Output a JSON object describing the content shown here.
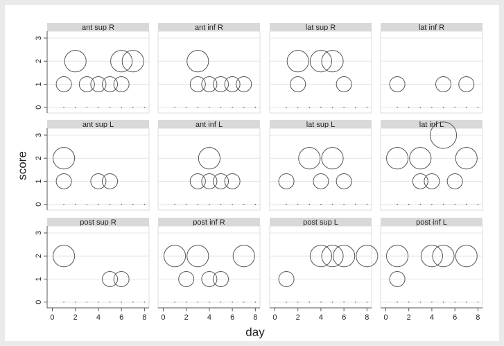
{
  "chart_data": {
    "type": "scatter",
    "x_label": "day",
    "y_label": "score",
    "xlim": [
      -0.45,
      8.4
    ],
    "ylim": [
      -0.25,
      3.3
    ],
    "xticks": [
      0,
      2,
      4,
      6,
      8
    ],
    "yticks": [
      0,
      1,
      2,
      3
    ],
    "grid": true,
    "color": "#555555",
    "panels": [
      {
        "title": "ant sup R",
        "x": [
          2,
          6,
          7,
          1,
          3,
          4,
          5,
          6,
          1,
          2,
          3,
          4,
          5,
          6,
          7,
          8
        ],
        "y": [
          2,
          2,
          2,
          1,
          1,
          1,
          1,
          1,
          0,
          0,
          0,
          0,
          0,
          0,
          0,
          0
        ]
      },
      {
        "title": "ant inf R",
        "x": [
          3,
          3,
          4,
          5,
          6,
          7,
          1,
          2,
          3,
          4,
          5,
          6,
          7,
          8
        ],
        "y": [
          2,
          1,
          1,
          1,
          1,
          1,
          0,
          0,
          0,
          0,
          0,
          0,
          0,
          0
        ]
      },
      {
        "title": "lat sup R",
        "x": [
          2,
          4,
          5,
          2,
          6,
          1,
          2,
          3,
          4,
          5,
          6,
          7,
          8
        ],
        "y": [
          2,
          2,
          2,
          1,
          1,
          0,
          0,
          0,
          0,
          0,
          0,
          0,
          0
        ]
      },
      {
        "title": "lat inf R",
        "x": [
          1,
          5,
          7,
          1,
          2,
          3,
          4,
          5,
          6,
          7,
          8
        ],
        "y": [
          1,
          1,
          1,
          0,
          0,
          0,
          0,
          0,
          0,
          0,
          0
        ]
      },
      {
        "title": "ant sup L",
        "x": [
          1,
          1,
          4,
          5,
          1,
          2,
          3,
          4,
          5,
          6,
          7,
          8
        ],
        "y": [
          2,
          1,
          1,
          1,
          0,
          0,
          0,
          0,
          0,
          0,
          0,
          0
        ]
      },
      {
        "title": "ant inf L",
        "x": [
          4,
          3,
          4,
          5,
          6,
          1,
          2,
          3,
          4,
          5,
          6,
          7,
          8
        ],
        "y": [
          2,
          1,
          1,
          1,
          1,
          0,
          0,
          0,
          0,
          0,
          0,
          0,
          0
        ]
      },
      {
        "title": "lat sup L",
        "x": [
          3,
          5,
          1,
          4,
          6,
          1,
          2,
          3,
          4,
          5,
          6,
          7,
          8
        ],
        "y": [
          2,
          2,
          1,
          1,
          1,
          0,
          0,
          0,
          0,
          0,
          0,
          0,
          0
        ]
      },
      {
        "title": "lat inf L",
        "x": [
          5,
          1,
          3,
          7,
          3,
          4,
          6,
          1,
          2,
          3,
          4,
          5,
          6,
          7,
          8
        ],
        "y": [
          3,
          2,
          2,
          2,
          1,
          1,
          1,
          0,
          0,
          0,
          0,
          0,
          0,
          0,
          0
        ]
      },
      {
        "title": "post sup R",
        "x": [
          1,
          5,
          6,
          1,
          2,
          3,
          4,
          5,
          6,
          7,
          8
        ],
        "y": [
          2,
          1,
          1,
          0,
          0,
          0,
          0,
          0,
          0,
          0,
          0
        ]
      },
      {
        "title": "post inf R",
        "x": [
          1,
          3,
          7,
          2,
          4,
          5,
          1,
          2,
          3,
          4,
          5,
          6,
          7,
          8
        ],
        "y": [
          2,
          2,
          2,
          1,
          1,
          1,
          0,
          0,
          0,
          0,
          0,
          0,
          0,
          0
        ]
      },
      {
        "title": "post sup L",
        "x": [
          4,
          5,
          6,
          8,
          1,
          1,
          2,
          3,
          4,
          5,
          6,
          7,
          8
        ],
        "y": [
          2,
          2,
          2,
          2,
          1,
          0,
          0,
          0,
          0,
          0,
          0,
          0,
          0
        ]
      },
      {
        "title": "post inf L",
        "x": [
          1,
          4,
          5,
          7,
          1,
          1,
          2,
          3,
          4,
          5,
          6,
          7,
          8
        ],
        "y": [
          2,
          2,
          2,
          2,
          1,
          0,
          0,
          0,
          0,
          0,
          0,
          0,
          0
        ]
      }
    ]
  }
}
